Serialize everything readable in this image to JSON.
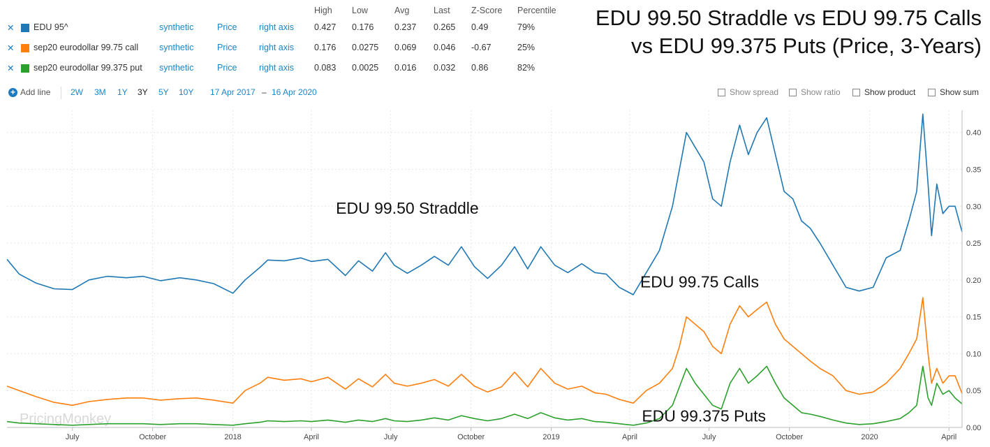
{
  "legend": {
    "headers": [
      "High",
      "Low",
      "Avg",
      "Last",
      "Z-Score",
      "Percentile"
    ],
    "rows": [
      {
        "name": "EDU 95^",
        "color": "#1f77b4",
        "kind": "synthetic",
        "measure": "Price",
        "axis": "right axis",
        "high": "0.427",
        "low": "0.176",
        "avg": "0.237",
        "last": "0.265",
        "z": "0.49",
        "pct": "79%"
      },
      {
        "name": "sep20 eurodollar 99.75 call",
        "color": "#ff7f0e",
        "kind": "synthetic",
        "measure": "Price",
        "axis": "right axis",
        "high": "0.176",
        "low": "0.0275",
        "avg": "0.069",
        "last": "0.046",
        "z": "-0.67",
        "pct": "25%"
      },
      {
        "name": "sep20 eurodollar 99.375 put",
        "color": "#2ca02c",
        "kind": "synthetic",
        "measure": "Price",
        "axis": "right axis",
        "high": "0.083",
        "low": "0.0025",
        "avg": "0.016",
        "last": "0.032",
        "z": "0.86",
        "pct": "82%"
      }
    ]
  },
  "toolbar": {
    "add_line": "Add line",
    "ranges": [
      "2W",
      "3M",
      "1Y",
      "3Y",
      "5Y",
      "10Y"
    ],
    "active_range": "3Y",
    "date_from": "17 Apr 2017",
    "date_sep": "–",
    "date_to": "16 Apr 2020",
    "options": [
      {
        "label": "Show spread",
        "enabled": false
      },
      {
        "label": "Show ratio",
        "enabled": false
      },
      {
        "label": "Show product",
        "enabled": true
      },
      {
        "label": "Show sum",
        "enabled": true
      }
    ]
  },
  "title": {
    "line1": "EDU 99.50 Straddle vs EDU 99.75 Calls",
    "line2": "vs EDU 99.375 Puts (Price, 3-Years)"
  },
  "watermark": "PricingMonkey",
  "chart_data": {
    "type": "line",
    "x_range": [
      "2017-04-17",
      "2020-04-16"
    ],
    "x_tick_labels": [
      {
        "date": "2017-07-01",
        "label": "July"
      },
      {
        "date": "2017-10-01",
        "label": "October"
      },
      {
        "date": "2018-01-01",
        "label": "2018"
      },
      {
        "date": "2018-04-01",
        "label": "April"
      },
      {
        "date": "2018-07-01",
        "label": "July"
      },
      {
        "date": "2018-10-01",
        "label": "October"
      },
      {
        "date": "2019-01-01",
        "label": "2019"
      },
      {
        "date": "2019-04-01",
        "label": "April"
      },
      {
        "date": "2019-07-01",
        "label": "July"
      },
      {
        "date": "2019-10-01",
        "label": "October"
      },
      {
        "date": "2020-01-01",
        "label": "2020"
      },
      {
        "date": "2020-04-01",
        "label": "April"
      }
    ],
    "y_axis": "right",
    "ylim": [
      0,
      0.43
    ],
    "y_ticks": [
      0.0,
      0.05,
      0.1,
      0.15,
      0.2,
      0.25,
      0.3,
      0.35,
      0.4
    ],
    "y_tick_labels": [
      "0.00",
      "0.05",
      "0.10",
      "0.15",
      "0.20",
      "0.25",
      "0.30",
      "0.35",
      "0.40"
    ],
    "grid": true,
    "annotations": [
      {
        "text": "EDU 99.50 Straddle",
        "date": "2018-07-20",
        "y": 0.29
      },
      {
        "text": "EDU 99.75 Calls",
        "date": "2019-06-20",
        "y": 0.19
      },
      {
        "text": "EDU 99.375 Puts",
        "date": "2019-06-25",
        "y": 0.008
      }
    ],
    "series": [
      {
        "name": "EDU 95^",
        "color": "#1f77b4",
        "x": [
          "2017-04-17",
          "2017-05-01",
          "2017-05-20",
          "2017-06-10",
          "2017-07-01",
          "2017-07-20",
          "2017-08-10",
          "2017-09-01",
          "2017-09-20",
          "2017-10-10",
          "2017-11-01",
          "2017-11-20",
          "2017-12-10",
          "2018-01-01",
          "2018-01-15",
          "2018-02-01",
          "2018-02-10",
          "2018-03-01",
          "2018-03-20",
          "2018-04-01",
          "2018-04-20",
          "2018-05-10",
          "2018-05-25",
          "2018-06-10",
          "2018-06-25",
          "2018-07-05",
          "2018-07-20",
          "2018-08-05",
          "2018-08-20",
          "2018-09-05",
          "2018-09-20",
          "2018-10-05",
          "2018-10-20",
          "2018-11-05",
          "2018-11-20",
          "2018-12-05",
          "2018-12-20",
          "2019-01-05",
          "2019-01-20",
          "2019-02-05",
          "2019-02-20",
          "2019-03-05",
          "2019-03-20",
          "2019-04-05",
          "2019-04-20",
          "2019-05-05",
          "2019-05-20",
          "2019-05-28",
          "2019-06-05",
          "2019-06-15",
          "2019-06-25",
          "2019-07-05",
          "2019-07-15",
          "2019-07-25",
          "2019-08-05",
          "2019-08-15",
          "2019-08-25",
          "2019-09-05",
          "2019-09-15",
          "2019-09-25",
          "2019-10-05",
          "2019-10-15",
          "2019-10-25",
          "2019-11-05",
          "2019-11-20",
          "2019-12-05",
          "2019-12-20",
          "2020-01-05",
          "2020-01-20",
          "2020-02-05",
          "2020-02-15",
          "2020-02-24",
          "2020-03-02",
          "2020-03-08",
          "2020-03-12",
          "2020-03-18",
          "2020-03-25",
          "2020-04-01",
          "2020-04-08",
          "2020-04-16"
        ],
        "y": [
          0.228,
          0.208,
          0.196,
          0.188,
          0.187,
          0.2,
          0.205,
          0.203,
          0.205,
          0.199,
          0.203,
          0.2,
          0.195,
          0.182,
          0.2,
          0.217,
          0.227,
          0.226,
          0.23,
          0.225,
          0.228,
          0.206,
          0.226,
          0.212,
          0.237,
          0.22,
          0.209,
          0.22,
          0.232,
          0.22,
          0.245,
          0.218,
          0.202,
          0.22,
          0.245,
          0.215,
          0.245,
          0.22,
          0.21,
          0.222,
          0.21,
          0.208,
          0.19,
          0.18,
          0.21,
          0.24,
          0.3,
          0.35,
          0.4,
          0.38,
          0.36,
          0.31,
          0.3,
          0.36,
          0.41,
          0.37,
          0.4,
          0.42,
          0.37,
          0.32,
          0.31,
          0.28,
          0.27,
          0.25,
          0.22,
          0.19,
          0.185,
          0.19,
          0.23,
          0.24,
          0.28,
          0.32,
          0.425,
          0.33,
          0.26,
          0.33,
          0.29,
          0.3,
          0.3,
          0.265
        ]
      },
      {
        "name": "sep20 eurodollar 99.75 call",
        "color": "#ff7f0e",
        "x": [
          "2017-04-17",
          "2017-05-01",
          "2017-05-20",
          "2017-06-10",
          "2017-07-01",
          "2017-07-20",
          "2017-08-10",
          "2017-09-01",
          "2017-09-20",
          "2017-10-10",
          "2017-11-01",
          "2017-11-20",
          "2017-12-10",
          "2018-01-01",
          "2018-01-15",
          "2018-02-01",
          "2018-02-10",
          "2018-03-01",
          "2018-03-20",
          "2018-04-01",
          "2018-04-20",
          "2018-05-10",
          "2018-05-25",
          "2018-06-10",
          "2018-06-25",
          "2018-07-05",
          "2018-07-20",
          "2018-08-05",
          "2018-08-20",
          "2018-09-05",
          "2018-09-20",
          "2018-10-05",
          "2018-10-20",
          "2018-11-05",
          "2018-11-20",
          "2018-12-05",
          "2018-12-20",
          "2019-01-05",
          "2019-01-20",
          "2019-02-05",
          "2019-02-20",
          "2019-03-05",
          "2019-03-20",
          "2019-04-05",
          "2019-04-20",
          "2019-05-05",
          "2019-05-20",
          "2019-05-28",
          "2019-06-05",
          "2019-06-15",
          "2019-06-25",
          "2019-07-05",
          "2019-07-15",
          "2019-07-25",
          "2019-08-05",
          "2019-08-15",
          "2019-08-25",
          "2019-09-05",
          "2019-09-15",
          "2019-09-25",
          "2019-10-05",
          "2019-10-15",
          "2019-10-25",
          "2019-11-05",
          "2019-11-20",
          "2019-12-05",
          "2019-12-20",
          "2020-01-05",
          "2020-01-20",
          "2020-02-05",
          "2020-02-15",
          "2020-02-24",
          "2020-03-02",
          "2020-03-08",
          "2020-03-12",
          "2020-03-18",
          "2020-03-25",
          "2020-04-01",
          "2020-04-08",
          "2020-04-16"
        ],
        "y": [
          0.056,
          0.05,
          0.042,
          0.034,
          0.03,
          0.035,
          0.038,
          0.04,
          0.04,
          0.037,
          0.039,
          0.04,
          0.037,
          0.033,
          0.05,
          0.06,
          0.068,
          0.064,
          0.066,
          0.062,
          0.068,
          0.052,
          0.066,
          0.055,
          0.072,
          0.06,
          0.056,
          0.06,
          0.065,
          0.056,
          0.072,
          0.056,
          0.048,
          0.055,
          0.075,
          0.055,
          0.08,
          0.06,
          0.052,
          0.056,
          0.047,
          0.045,
          0.038,
          0.033,
          0.05,
          0.06,
          0.08,
          0.11,
          0.15,
          0.14,
          0.13,
          0.11,
          0.1,
          0.14,
          0.165,
          0.15,
          0.16,
          0.17,
          0.14,
          0.12,
          0.11,
          0.1,
          0.09,
          0.08,
          0.07,
          0.05,
          0.045,
          0.048,
          0.06,
          0.08,
          0.1,
          0.12,
          0.176,
          0.1,
          0.06,
          0.08,
          0.06,
          0.07,
          0.07,
          0.046
        ]
      },
      {
        "name": "sep20 eurodollar 99.375 put",
        "color": "#2ca02c",
        "x": [
          "2017-04-17",
          "2017-05-01",
          "2017-05-20",
          "2017-06-10",
          "2017-07-01",
          "2017-07-20",
          "2017-08-10",
          "2017-09-01",
          "2017-09-20",
          "2017-10-10",
          "2017-11-01",
          "2017-11-20",
          "2017-12-10",
          "2018-01-01",
          "2018-01-15",
          "2018-02-01",
          "2018-02-10",
          "2018-03-01",
          "2018-03-20",
          "2018-04-01",
          "2018-04-20",
          "2018-05-10",
          "2018-05-25",
          "2018-06-10",
          "2018-06-25",
          "2018-07-05",
          "2018-07-20",
          "2018-08-05",
          "2018-08-20",
          "2018-09-05",
          "2018-09-20",
          "2018-10-05",
          "2018-10-20",
          "2018-11-05",
          "2018-11-20",
          "2018-12-05",
          "2018-12-20",
          "2019-01-05",
          "2019-01-20",
          "2019-02-05",
          "2019-02-20",
          "2019-03-05",
          "2019-03-20",
          "2019-04-05",
          "2019-04-20",
          "2019-05-05",
          "2019-05-20",
          "2019-05-28",
          "2019-06-05",
          "2019-06-15",
          "2019-06-25",
          "2019-07-05",
          "2019-07-15",
          "2019-07-25",
          "2019-08-05",
          "2019-08-15",
          "2019-08-25",
          "2019-09-05",
          "2019-09-15",
          "2019-09-25",
          "2019-10-05",
          "2019-10-15",
          "2019-10-25",
          "2019-11-05",
          "2019-11-20",
          "2019-12-05",
          "2019-12-20",
          "2020-01-05",
          "2020-01-20",
          "2020-02-05",
          "2020-02-15",
          "2020-02-24",
          "2020-03-02",
          "2020-03-08",
          "2020-03-12",
          "2020-03-18",
          "2020-03-25",
          "2020-04-01",
          "2020-04-08",
          "2020-04-16"
        ],
        "y": [
          0.008,
          0.006,
          0.005,
          0.004,
          0.003,
          0.004,
          0.005,
          0.005,
          0.005,
          0.004,
          0.005,
          0.005,
          0.004,
          0.003,
          0.005,
          0.007,
          0.009,
          0.008,
          0.009,
          0.008,
          0.01,
          0.007,
          0.01,
          0.008,
          0.012,
          0.009,
          0.008,
          0.01,
          0.013,
          0.01,
          0.016,
          0.012,
          0.009,
          0.012,
          0.018,
          0.012,
          0.02,
          0.013,
          0.01,
          0.012,
          0.008,
          0.007,
          0.005,
          0.003,
          0.006,
          0.012,
          0.03,
          0.055,
          0.08,
          0.06,
          0.045,
          0.03,
          0.025,
          0.06,
          0.08,
          0.06,
          0.07,
          0.083,
          0.06,
          0.04,
          0.03,
          0.02,
          0.018,
          0.015,
          0.01,
          0.006,
          0.004,
          0.005,
          0.008,
          0.012,
          0.02,
          0.03,
          0.083,
          0.04,
          0.03,
          0.06,
          0.045,
          0.05,
          0.04,
          0.032
        ]
      }
    ]
  }
}
